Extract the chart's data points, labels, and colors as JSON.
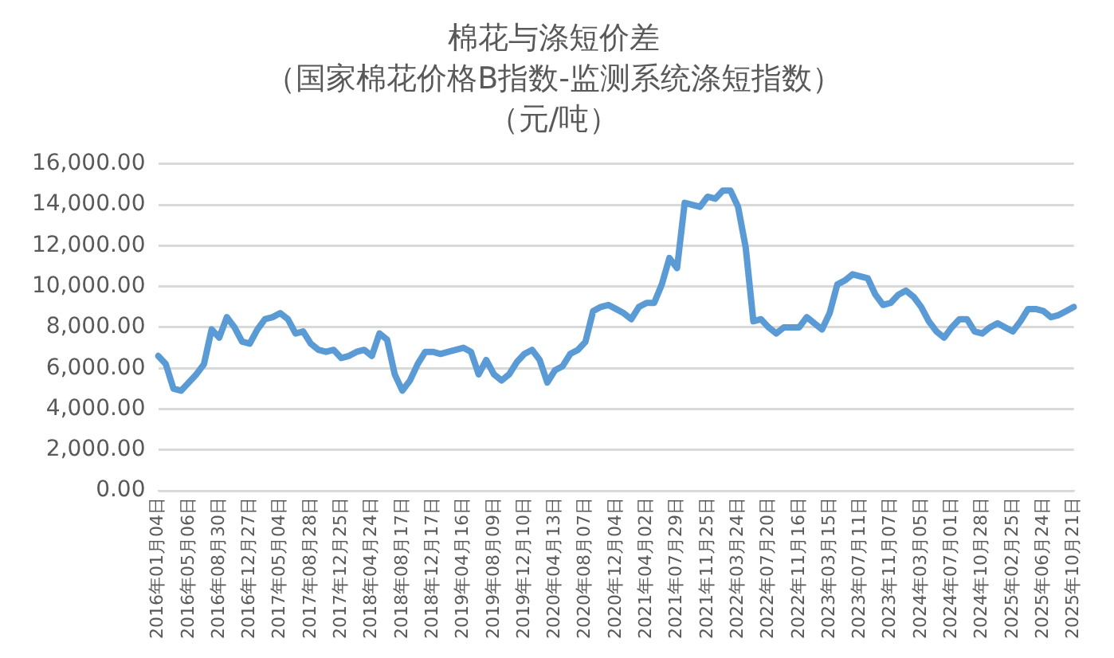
{
  "chart_data": {
    "type": "line",
    "title": "棉花与涤短价差",
    "subtitle": "（国家棉花价格B指数-监测系统涤短指数）（元/吨）",
    "categories": [
      "2016年01月04日",
      null,
      null,
      null,
      "2016年05月06日",
      null,
      null,
      null,
      "2016年08月30日",
      null,
      null,
      null,
      "2016年12月27日",
      null,
      null,
      null,
      "2017年05月04日",
      null,
      null,
      null,
      "2017年08月28日",
      null,
      null,
      null,
      "2017年12月25日",
      null,
      null,
      null,
      "2018年04月24日",
      null,
      null,
      null,
      "2018年08月17日",
      null,
      null,
      null,
      "2018年12月17日",
      null,
      null,
      null,
      "2019年04月16日",
      null,
      null,
      null,
      "2019年08月09日",
      null,
      null,
      null,
      "2019年12月10日",
      null,
      null,
      null,
      "2020年04月13日",
      null,
      null,
      null,
      "2020年08月07日",
      null,
      null,
      null,
      "2020年12月04日",
      null,
      null,
      null,
      "2021年04月02日",
      null,
      null,
      null,
      "2021年07月29日",
      null,
      null,
      null,
      "2021年11月25日",
      null,
      null,
      null,
      "2022年03月24日",
      null,
      null,
      null,
      "2022年07月20日",
      null,
      null,
      null,
      "2022年11月16日",
      null,
      null,
      null,
      "2023年03月15日",
      null,
      null,
      null,
      "2023年07月11日",
      null,
      null,
      null,
      "2023年11月07日",
      null,
      null,
      null,
      "2024年03月05日",
      null,
      null,
      null,
      "2024年07月01日",
      null,
      null,
      null,
      "2024年10月28日",
      null,
      null,
      null,
      "2025年02月25日",
      null,
      null,
      null,
      "2025年06月24日",
      null,
      null,
      null,
      "2025年10月21日"
    ],
    "series": [
      {
        "color": "#5b9bd5",
        "values": [
          6600,
          6200,
          5000,
          4900,
          5300,
          5700,
          6200,
          7900,
          7500,
          8500,
          8000,
          7300,
          7200,
          7900,
          8400,
          8500,
          8700,
          8400,
          7700,
          7800,
          7200,
          6900,
          6800,
          6900,
          6500,
          6600,
          6800,
          6900,
          6600,
          7700,
          7400,
          5700,
          4900,
          5400,
          6200,
          6800,
          6800,
          6700,
          6800,
          6900,
          7000,
          6800,
          5700,
          6400,
          5700,
          5400,
          5700,
          6300,
          6700,
          6900,
          6400,
          5300,
          5900,
          6100,
          6700,
          6900,
          7300,
          8800,
          9000,
          9100,
          8900,
          8700,
          8400,
          9000,
          9200,
          9200,
          10100,
          11400,
          10900,
          14100,
          14000,
          13900,
          14400,
          14300,
          14700,
          14700,
          13900,
          11900,
          8300,
          8400,
          8000,
          7700,
          8000,
          8000,
          8000,
          8500,
          8200,
          7900,
          8700,
          10100,
          10300,
          10600,
          10500,
          10400,
          9600,
          9100,
          9200,
          9600,
          9800,
          9500,
          9000,
          8300,
          7800,
          7500,
          8000,
          8400,
          8400,
          7800,
          7700,
          8000,
          8200,
          8000,
          7800,
          8300,
          8900,
          8900,
          8800,
          8500,
          8600,
          8800,
          9000
        ]
      }
    ],
    "ylim": [
      0,
      16000
    ],
    "yticks": [
      {
        "value": 0,
        "label": "0.00"
      },
      {
        "value": 2000,
        "label": "2,000.00"
      },
      {
        "value": 4000,
        "label": "4,000.00"
      },
      {
        "value": 6000,
        "label": "6,000.00"
      },
      {
        "value": 8000,
        "label": "8,000.00"
      },
      {
        "value": 10000,
        "label": "10,000.00"
      },
      {
        "value": 12000,
        "label": "12,000.00"
      },
      {
        "value": 14000,
        "label": "14,000.00"
      },
      {
        "value": 16000,
        "label": "16,000.00"
      }
    ],
    "grid": "y",
    "legend": false,
    "marker": "none",
    "line_style": "solid"
  }
}
